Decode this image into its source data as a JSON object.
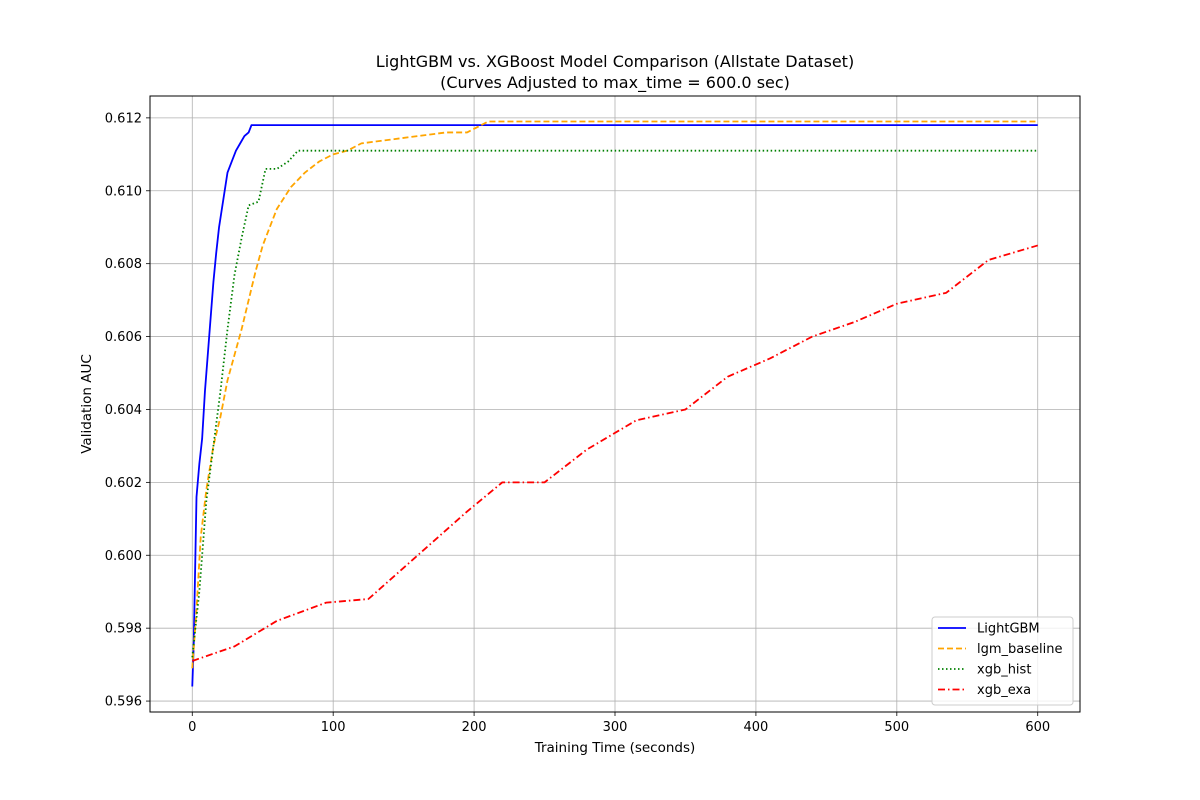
{
  "chart_data": {
    "type": "line",
    "title": "LightGBM vs. XGBoost Model Comparison (Allstate Dataset)",
    "subtitle": "(Curves Adjusted to max_time = 600.0 sec)",
    "xlabel": "Training Time (seconds)",
    "ylabel": "Validation AUC",
    "xlim": [
      -30,
      630
    ],
    "ylim": [
      0.5957,
      0.6126
    ],
    "xticks": [
      0,
      100,
      200,
      300,
      400,
      500,
      600
    ],
    "yticks": [
      0.596,
      0.598,
      0.6,
      0.602,
      0.604,
      0.606,
      0.608,
      0.61,
      0.612
    ],
    "xtick_labels": [
      "0",
      "100",
      "200",
      "300",
      "400",
      "500",
      "600"
    ],
    "ytick_labels": [
      "0.596",
      "0.598",
      "0.600",
      "0.602",
      "0.604",
      "0.606",
      "0.608",
      "0.610",
      "0.612"
    ],
    "grid": true,
    "legend_position": "lower-right",
    "series": [
      {
        "name": "LightGBM",
        "color": "#0000ff",
        "style": "solid",
        "points": [
          [
            0,
            0.5964
          ],
          [
            1,
            0.5975
          ],
          [
            3,
            0.6016
          ],
          [
            5,
            0.6025
          ],
          [
            7,
            0.6032
          ],
          [
            9,
            0.6045
          ],
          [
            11,
            0.6055
          ],
          [
            13,
            0.6065
          ],
          [
            15,
            0.6075
          ],
          [
            17,
            0.6083
          ],
          [
            19,
            0.609
          ],
          [
            21,
            0.6095
          ],
          [
            23,
            0.61
          ],
          [
            25,
            0.6105
          ],
          [
            28,
            0.6108
          ],
          [
            31,
            0.6111
          ],
          [
            34,
            0.6113
          ],
          [
            37,
            0.6115
          ],
          [
            40,
            0.6116
          ],
          [
            42,
            0.6118
          ],
          [
            600,
            0.6118
          ]
        ]
      },
      {
        "name": "lgm_baseline",
        "color": "#ffa500",
        "style": "dashed",
        "points": [
          [
            0,
            0.5969
          ],
          [
            3,
            0.5985
          ],
          [
            6,
            0.6005
          ],
          [
            10,
            0.6018
          ],
          [
            15,
            0.603
          ],
          [
            20,
            0.6038
          ],
          [
            25,
            0.6048
          ],
          [
            30,
            0.6055
          ],
          [
            35,
            0.6062
          ],
          [
            40,
            0.607
          ],
          [
            45,
            0.6078
          ],
          [
            50,
            0.6085
          ],
          [
            55,
            0.609
          ],
          [
            60,
            0.6095
          ],
          [
            70,
            0.6101
          ],
          [
            80,
            0.6105
          ],
          [
            90,
            0.6108
          ],
          [
            100,
            0.611
          ],
          [
            110,
            0.6111
          ],
          [
            120,
            0.6113
          ],
          [
            140,
            0.6114
          ],
          [
            160,
            0.6115
          ],
          [
            180,
            0.6116
          ],
          [
            195,
            0.6116
          ],
          [
            210,
            0.6119
          ],
          [
            600,
            0.6119
          ]
        ]
      },
      {
        "name": "xgb_hist",
        "color": "#008000",
        "style": "dotted",
        "points": [
          [
            0,
            0.5972
          ],
          [
            5,
            0.599
          ],
          [
            10,
            0.6015
          ],
          [
            15,
            0.603
          ],
          [
            20,
            0.6045
          ],
          [
            25,
            0.6062
          ],
          [
            30,
            0.6077
          ],
          [
            35,
            0.6087
          ],
          [
            40,
            0.6096
          ],
          [
            47,
            0.6097
          ],
          [
            52,
            0.6106
          ],
          [
            60,
            0.6106
          ],
          [
            68,
            0.6108
          ],
          [
            75,
            0.6111
          ],
          [
            600,
            0.6111
          ]
        ]
      },
      {
        "name": "xgb_exa",
        "color": "#ff0000",
        "style": "dashdot",
        "points": [
          [
            0,
            0.5971
          ],
          [
            30,
            0.5975
          ],
          [
            60,
            0.5982
          ],
          [
            95,
            0.5987
          ],
          [
            125,
            0.5988
          ],
          [
            160,
            0.6
          ],
          [
            195,
            0.6012
          ],
          [
            220,
            0.602
          ],
          [
            250,
            0.602
          ],
          [
            280,
            0.6029
          ],
          [
            315,
            0.6037
          ],
          [
            350,
            0.604
          ],
          [
            380,
            0.6049
          ],
          [
            410,
            0.6054
          ],
          [
            440,
            0.606
          ],
          [
            470,
            0.6064
          ],
          [
            500,
            0.6069
          ],
          [
            535,
            0.6072
          ],
          [
            565,
            0.6081
          ],
          [
            600,
            0.6085
          ]
        ]
      }
    ]
  }
}
